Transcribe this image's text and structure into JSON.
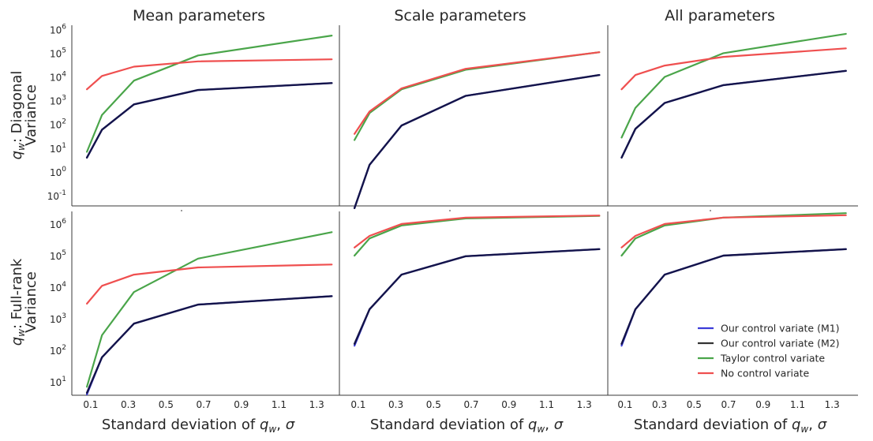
{
  "chart_data": {
    "type": "line",
    "column_titles": [
      "Mean parameters",
      "Scale parameters",
      "All parameters"
    ],
    "row_labels": [
      {
        "prefix": "q",
        "subscript": "w",
        "suffix": ": Diagonal",
        "line2": "Variance"
      },
      {
        "prefix": "q",
        "subscript": "w",
        "suffix": ": Full-rank",
        "line2": "Variance"
      }
    ],
    "xlabel": {
      "text": "Standard deviation of ",
      "var": "q",
      "sub": "w",
      "tail": ", ",
      "sigma": "σ"
    },
    "x": [
      0.08,
      0.16,
      0.33,
      0.67,
      1.38
    ],
    "xticks": [
      0.1,
      0.3,
      0.5,
      0.7,
      0.9,
      1.1,
      1.3
    ],
    "xtick_labels": [
      "0.1",
      "0.3",
      "0.5",
      "0.7",
      "0.9",
      "1.1",
      "1.3"
    ],
    "xlim": [
      0,
      1.45
    ],
    "yscale": "log",
    "ylim_top_row": [
      0.04,
      1500000
    ],
    "ylim_bottom_row": [
      4,
      2500000
    ],
    "yticks_top_row": [
      "10^-1",
      "10^0",
      "10^1",
      "10^2",
      "10^3",
      "10^4",
      "10^5",
      "10^6"
    ],
    "yticks_bottom_row": [
      "10^1",
      "10^2",
      "10^3",
      "10^4",
      "10^5",
      "10^6"
    ],
    "legend": {
      "position": "lower-right",
      "entries": [
        {
          "label": "Our control variate (M1)",
          "color": "#3b3bd8"
        },
        {
          "label": "Our control variate (M2)",
          "color": "#333333"
        },
        {
          "label": "Taylor control variate",
          "color": "#4aa54a"
        },
        {
          "label": "No control variate",
          "color": "#ef4f4f"
        }
      ]
    },
    "panels": [
      {
        "row": 0,
        "col": 0,
        "series": [
          {
            "name": "Our control variate (M1)",
            "color": "#3b3bd8",
            "values": [
              4,
              60,
              700,
              2800,
              5500
            ]
          },
          {
            "name": "Our control variate (M2)",
            "color": "#14144a",
            "values": [
              4,
              60,
              700,
              2800,
              5500
            ]
          },
          {
            "name": "Taylor control variate",
            "color": "#4aa54a",
            "values": [
              7,
              250,
              7000,
              80000,
              550000
            ]
          },
          {
            "name": "No control variate",
            "color": "#ef4f4f",
            "values": [
              3000,
              11000,
              27000,
              45000,
              55000
            ]
          }
        ]
      },
      {
        "row": 0,
        "col": 1,
        "series": [
          {
            "name": "Our control variate (M1)",
            "color": "#3b3bd8",
            "values": [
              0.03,
              2,
              90,
              1600,
              12000
            ]
          },
          {
            "name": "Our control variate (M2)",
            "color": "#14144a",
            "values": [
              0.03,
              2,
              90,
              1600,
              12000
            ]
          },
          {
            "name": "Taylor control variate",
            "color": "#4aa54a",
            "values": [
              22,
              300,
              3000,
              20000,
              110000
            ]
          },
          {
            "name": "No control variate",
            "color": "#ef4f4f",
            "values": [
              40,
              350,
              3300,
              22000,
              110000
            ]
          }
        ]
      },
      {
        "row": 0,
        "col": 2,
        "series": [
          {
            "name": "Our control variate (M1)",
            "color": "#3b3bd8",
            "values": [
              4,
              65,
              800,
              4500,
              18000
            ]
          },
          {
            "name": "Our control variate (M2)",
            "color": "#14144a",
            "values": [
              4,
              65,
              800,
              4500,
              18000
            ]
          },
          {
            "name": "Taylor control variate",
            "color": "#4aa54a",
            "values": [
              28,
              500,
              10000,
              100000,
              650000
            ]
          },
          {
            "name": "No control variate",
            "color": "#ef4f4f",
            "values": [
              3000,
              12000,
              30000,
              70000,
              160000
            ]
          }
        ]
      },
      {
        "row": 1,
        "col": 0,
        "series": [
          {
            "name": "Our control variate (M1)",
            "color": "#3b3bd8",
            "values": [
              4,
              60,
              700,
              2800,
              5200
            ]
          },
          {
            "name": "Our control variate (M2)",
            "color": "#14144a",
            "values": [
              4.5,
              60,
              700,
              2800,
              5200
            ]
          },
          {
            "name": "Taylor control variate",
            "color": "#4aa54a",
            "values": [
              7,
              300,
              7000,
              80000,
              550000
            ]
          },
          {
            "name": "No control variate",
            "color": "#ef4f4f",
            "values": [
              3000,
              11000,
              25000,
              42000,
              52000
            ]
          }
        ]
      },
      {
        "row": 1,
        "col": 1,
        "series": [
          {
            "name": "Our control variate (M1)",
            "color": "#3b3bd8",
            "values": [
              140,
              2000,
              25000,
              95000,
              160000
            ]
          },
          {
            "name": "Our control variate (M2)",
            "color": "#14144a",
            "values": [
              160,
              2000,
              25000,
              95000,
              160000
            ]
          },
          {
            "name": "Taylor control variate",
            "color": "#4aa54a",
            "values": [
              100000,
              350000,
              900000,
              1500000,
              1800000
            ]
          },
          {
            "name": "No control variate",
            "color": "#ef4f4f",
            "values": [
              180000,
              420000,
              1000000,
              1600000,
              1850000
            ]
          }
        ]
      },
      {
        "row": 1,
        "col": 2,
        "series": [
          {
            "name": "Our control variate (M1)",
            "color": "#3b3bd8",
            "values": [
              140,
              2000,
              25000,
              100000,
              160000
            ]
          },
          {
            "name": "Our control variate (M2)",
            "color": "#14144a",
            "values": [
              160,
              2000,
              25000,
              100000,
              160000
            ]
          },
          {
            "name": "Taylor control variate",
            "color": "#4aa54a",
            "values": [
              100000,
              350000,
              900000,
              1600000,
              2200000
            ]
          },
          {
            "name": "No control variate",
            "color": "#ef4f4f",
            "values": [
              180000,
              420000,
              1000000,
              1600000,
              1900000
            ]
          }
        ]
      }
    ]
  }
}
